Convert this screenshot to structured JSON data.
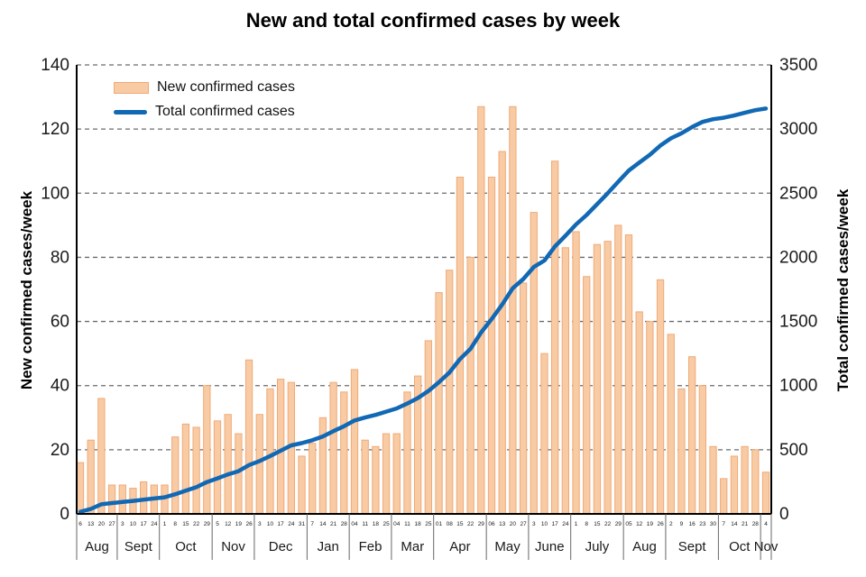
{
  "chart_data": {
    "type": "combo",
    "title": "New and total confirmed cases by week",
    "legend_position": "top-left inside plot",
    "grid": "horizontal dashed",
    "months": [
      {
        "label": "Aug",
        "weeks": [
          "6",
          "13",
          "20",
          "27"
        ]
      },
      {
        "label": "Sept",
        "weeks": [
          "3",
          "10",
          "17",
          "24"
        ]
      },
      {
        "label": "Oct",
        "weeks": [
          "1",
          "8",
          "15",
          "22",
          "29"
        ]
      },
      {
        "label": "Nov",
        "weeks": [
          "5",
          "12",
          "19",
          "26"
        ]
      },
      {
        "label": "Dec",
        "weeks": [
          "3",
          "10",
          "17",
          "24",
          "31"
        ]
      },
      {
        "label": "Jan",
        "weeks": [
          "7",
          "14",
          "21",
          "28"
        ]
      },
      {
        "label": "Feb",
        "weeks": [
          "04",
          "11",
          "18",
          "25"
        ]
      },
      {
        "label": "Mar",
        "weeks": [
          "04",
          "11",
          "18",
          "25"
        ]
      },
      {
        "label": "Apr",
        "weeks": [
          "01",
          "08",
          "15",
          "22",
          "29"
        ]
      },
      {
        "label": "May",
        "weeks": [
          "06",
          "13",
          "20",
          "27"
        ]
      },
      {
        "label": "June",
        "weeks": [
          "3",
          "10",
          "17",
          "24"
        ]
      },
      {
        "label": "July",
        "weeks": [
          "1",
          "8",
          "15",
          "22",
          "29"
        ]
      },
      {
        "label": "Aug",
        "weeks": [
          "05",
          "12",
          "19",
          "26"
        ]
      },
      {
        "label": "Sept",
        "weeks": [
          "2",
          "9",
          "16",
          "23",
          "30"
        ]
      },
      {
        "label": "Oct",
        "weeks": [
          "7",
          "14",
          "21",
          "28"
        ]
      },
      {
        "label": "Nov",
        "weeks": [
          "4"
        ]
      }
    ],
    "series": [
      {
        "name": "New confirmed cases",
        "type": "bar",
        "axis": "left",
        "color": "#F8CBA4",
        "border_color": "#EFAA78",
        "values": [
          16,
          23,
          36,
          9,
          9,
          8,
          10,
          9,
          9,
          24,
          28,
          27,
          40,
          29,
          31,
          25,
          48,
          31,
          39,
          42,
          41,
          18,
          22,
          30,
          41,
          38,
          45,
          23,
          21,
          25,
          25,
          38,
          43,
          54,
          69,
          76,
          105,
          80,
          127,
          105,
          113,
          127,
          72,
          94,
          50,
          110,
          83,
          88,
          74,
          84,
          85,
          90,
          87,
          63,
          60,
          73,
          56,
          39,
          49,
          40,
          21,
          11,
          18,
          21,
          20,
          13
        ]
      },
      {
        "name": "Total confirmed cases",
        "type": "line",
        "axis": "right",
        "color": "#1168B4",
        "values": [
          16,
          39,
          75,
          84,
          93,
          101,
          111,
          120,
          129,
          153,
          181,
          208,
          248,
          277,
          308,
          333,
          381,
          412,
          451,
          493,
          534,
          552,
          574,
          604,
          645,
          683,
          728,
          751,
          772,
          797,
          822,
          860,
          903,
          957,
          1026,
          1102,
          1207,
          1287,
          1414,
          1519,
          1632,
          1759,
          1831,
          1925,
          1975,
          2085,
          2168,
          2256,
          2330,
          2414,
          2499,
          2589,
          2676,
          2739,
          2799,
          2872,
          2928,
          2967,
          3016,
          3056,
          3077,
          3088,
          3106,
          3127,
          3147,
          3160
        ]
      }
    ],
    "left_axis": {
      "label": "New confirmed cases/week",
      "min": 0,
      "max": 140,
      "step": 20,
      "ticks": [
        0,
        20,
        40,
        60,
        80,
        100,
        120,
        140
      ]
    },
    "right_axis": {
      "label": "Total confirmed cases/week",
      "min": 0,
      "max": 3500,
      "step": 500,
      "ticks": [
        0,
        500,
        1000,
        1500,
        2000,
        2500,
        3000,
        3500
      ]
    },
    "colors": {
      "gridline": "#6b6b6b",
      "axis": "#000000",
      "separator": "#666666"
    }
  }
}
